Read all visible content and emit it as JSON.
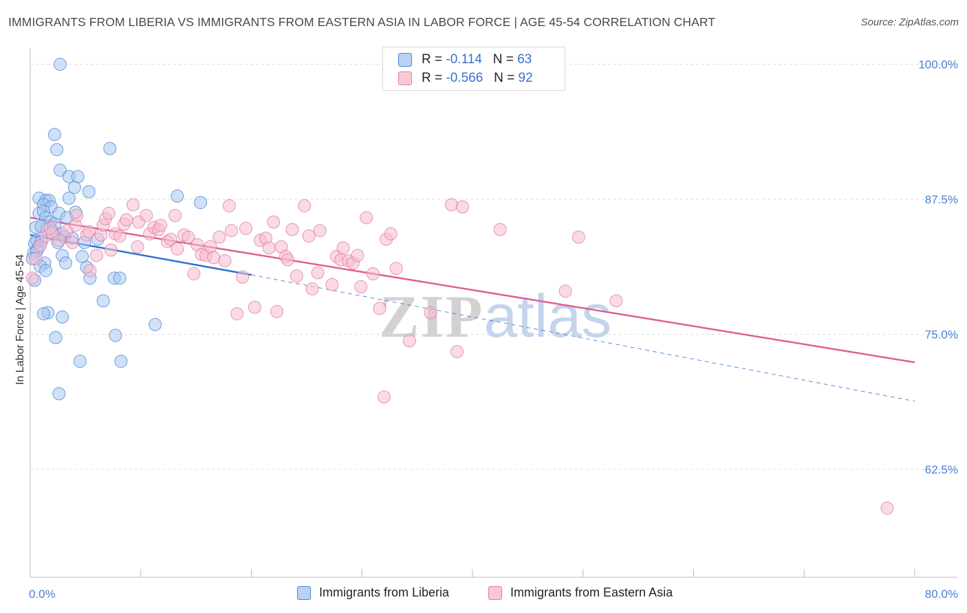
{
  "title": "IMMIGRANTS FROM LIBERIA VS IMMIGRANTS FROM EASTERN ASIA IN LABOR FORCE | AGE 45-54 CORRELATION CHART",
  "source": "Source: ZipAtlas.com",
  "watermark": "ZIPatlas",
  "colors": {
    "liberia_fill": "#a9c8f0",
    "liberia_stroke": "#4a86d8",
    "liberia_line": "#2f6fd0",
    "asia_fill": "#f6bcd0",
    "asia_stroke": "#e07da0",
    "asia_line": "#e0608f",
    "tick_label": "#4a7fd4",
    "grid": "#dddddd"
  },
  "legend": {
    "rows": [
      {
        "r_label": "R =",
        "r_value": "-0.114",
        "n_label": "N =",
        "n_value": "63"
      },
      {
        "r_label": "R =",
        "r_value": "-0.566",
        "n_label": "N =",
        "n_value": "92"
      }
    ]
  },
  "bottom_legend": [
    "Immigrants from Liberia",
    "Immigrants from Eastern Asia"
  ],
  "chart_data": {
    "type": "scatter",
    "title": "IMMIGRANTS FROM LIBERIA VS IMMIGRANTS FROM EASTERN ASIA IN LABOR FORCE | AGE 45-54 CORRELATION CHART",
    "xlabel": "",
    "ylabel": "In Labor Force | Age 45-54",
    "xlim": [
      0,
      80
    ],
    "ylim": [
      52.5,
      101.5
    ],
    "x_tick_labels": [
      "0.0%",
      "80.0%"
    ],
    "y_ticks": [
      62.5,
      75.0,
      87.5,
      100.0
    ],
    "y_tick_labels": [
      "62.5%",
      "75.0%",
      "87.5%",
      "100.0%"
    ],
    "grid": true,
    "series": [
      {
        "name": "Immigrants from Liberia",
        "r": -0.114,
        "n": 63,
        "trend": {
          "x0": 0.0,
          "y0": 84.2,
          "x1": 20.0,
          "y1": 80.5,
          "dashed_x1": 80.0,
          "dashed_y1": 68.8
        },
        "points": [
          [
            2.7,
            100.0
          ],
          [
            2.2,
            93.5
          ],
          [
            2.4,
            92.1
          ],
          [
            7.2,
            92.2
          ],
          [
            2.7,
            90.2
          ],
          [
            3.5,
            89.6
          ],
          [
            4.3,
            89.6
          ],
          [
            5.3,
            88.2
          ],
          [
            4.0,
            88.6
          ],
          [
            13.3,
            87.8
          ],
          [
            15.4,
            87.2
          ],
          [
            0.8,
            87.6
          ],
          [
            1.4,
            87.4
          ],
          [
            1.7,
            87.4
          ],
          [
            1.2,
            87.0
          ],
          [
            3.5,
            87.6
          ],
          [
            1.9,
            86.8
          ],
          [
            0.8,
            86.2
          ],
          [
            1.2,
            86.4
          ],
          [
            2.6,
            86.2
          ],
          [
            4.1,
            86.3
          ],
          [
            1.4,
            85.8
          ],
          [
            3.3,
            85.8
          ],
          [
            1.8,
            85.4
          ],
          [
            2.2,
            85.2
          ],
          [
            0.5,
            84.9
          ],
          [
            1.5,
            84.7
          ],
          [
            2.9,
            84.3
          ],
          [
            0.6,
            83.7
          ],
          [
            0.4,
            83.4
          ],
          [
            1.0,
            83.6
          ],
          [
            2.5,
            83.5
          ],
          [
            3.1,
            84.0
          ],
          [
            6.1,
            83.8
          ],
          [
            4.9,
            83.5
          ],
          [
            0.7,
            83.0
          ],
          [
            0.3,
            82.5
          ],
          [
            0.6,
            82.7
          ],
          [
            2.9,
            82.3
          ],
          [
            4.7,
            82.2
          ],
          [
            1.3,
            81.6
          ],
          [
            3.2,
            81.6
          ],
          [
            0.9,
            81.3
          ],
          [
            1.4,
            80.9
          ],
          [
            5.1,
            81.2
          ],
          [
            5.4,
            80.2
          ],
          [
            7.6,
            80.2
          ],
          [
            8.1,
            80.2
          ],
          [
            0.4,
            80.0
          ],
          [
            6.6,
            78.1
          ],
          [
            1.6,
            77.0
          ],
          [
            1.2,
            76.9
          ],
          [
            2.9,
            76.6
          ],
          [
            11.3,
            75.9
          ],
          [
            7.7,
            74.9
          ],
          [
            2.3,
            74.7
          ],
          [
            4.5,
            72.5
          ],
          [
            8.2,
            72.5
          ],
          [
            2.6,
            69.5
          ],
          [
            0.2,
            82.0
          ],
          [
            3.8,
            83.9
          ],
          [
            1.0,
            85.0
          ],
          [
            2.0,
            84.5
          ]
        ]
      },
      {
        "name": "Immigrants from Eastern Asia",
        "r": -0.566,
        "n": 92,
        "trend": {
          "x0": 0.0,
          "y0": 85.8,
          "x1": 80.0,
          "y1": 72.4
        },
        "points": [
          [
            0.2,
            80.2
          ],
          [
            0.5,
            82.0
          ],
          [
            0.9,
            83.2
          ],
          [
            1.4,
            84.1
          ],
          [
            2.0,
            84.3
          ],
          [
            2.6,
            83.7
          ],
          [
            3.3,
            84.6
          ],
          [
            3.8,
            83.5
          ],
          [
            4.1,
            85.1
          ],
          [
            4.2,
            86.0
          ],
          [
            5.1,
            84.2
          ],
          [
            5.3,
            84.5
          ],
          [
            5.4,
            80.9
          ],
          [
            6.0,
            82.3
          ],
          [
            6.4,
            84.2
          ],
          [
            6.6,
            85.1
          ],
          [
            6.8,
            85.7
          ],
          [
            7.1,
            86.2
          ],
          [
            7.3,
            82.8
          ],
          [
            7.7,
            84.3
          ],
          [
            8.1,
            84.1
          ],
          [
            8.5,
            85.2
          ],
          [
            8.7,
            85.6
          ],
          [
            9.3,
            87.0
          ],
          [
            9.7,
            83.1
          ],
          [
            9.8,
            85.4
          ],
          [
            10.5,
            86.0
          ],
          [
            10.8,
            84.3
          ],
          [
            11.2,
            84.9
          ],
          [
            11.6,
            84.7
          ],
          [
            11.8,
            85.1
          ],
          [
            12.4,
            83.6
          ],
          [
            12.7,
            83.8
          ],
          [
            13.1,
            86.0
          ],
          [
            13.3,
            82.9
          ],
          [
            13.9,
            84.2
          ],
          [
            14.3,
            84.0
          ],
          [
            14.8,
            80.6
          ],
          [
            15.1,
            83.3
          ],
          [
            15.5,
            82.4
          ],
          [
            15.9,
            82.3
          ],
          [
            16.3,
            83.1
          ],
          [
            16.6,
            82.1
          ],
          [
            17.1,
            84.0
          ],
          [
            17.6,
            81.8
          ],
          [
            18.0,
            86.9
          ],
          [
            18.2,
            84.6
          ],
          [
            18.7,
            76.9
          ],
          [
            19.2,
            80.3
          ],
          [
            19.5,
            84.8
          ],
          [
            20.3,
            77.5
          ],
          [
            20.8,
            83.7
          ],
          [
            21.3,
            83.9
          ],
          [
            21.6,
            83.0
          ],
          [
            22.0,
            85.4
          ],
          [
            22.3,
            77.1
          ],
          [
            22.7,
            83.1
          ],
          [
            23.1,
            82.2
          ],
          [
            23.3,
            81.9
          ],
          [
            23.7,
            84.7
          ],
          [
            24.1,
            80.4
          ],
          [
            24.8,
            86.9
          ],
          [
            25.2,
            84.1
          ],
          [
            25.5,
            79.2
          ],
          [
            26.0,
            80.7
          ],
          [
            26.2,
            84.6
          ],
          [
            27.3,
            79.6
          ],
          [
            27.7,
            82.2
          ],
          [
            28.1,
            81.9
          ],
          [
            28.3,
            83.0
          ],
          [
            28.8,
            81.8
          ],
          [
            29.2,
            81.6
          ],
          [
            29.6,
            82.3
          ],
          [
            29.9,
            79.4
          ],
          [
            30.4,
            85.8
          ],
          [
            31.0,
            80.6
          ],
          [
            31.6,
            77.4
          ],
          [
            32.0,
            69.2
          ],
          [
            32.2,
            83.8
          ],
          [
            32.6,
            84.3
          ],
          [
            33.1,
            81.1
          ],
          [
            34.3,
            74.4
          ],
          [
            36.2,
            77.0
          ],
          [
            38.1,
            87.0
          ],
          [
            38.6,
            73.4
          ],
          [
            39.1,
            86.8
          ],
          [
            42.5,
            84.7
          ],
          [
            48.4,
            79.0
          ],
          [
            49.6,
            84.0
          ],
          [
            53.0,
            78.1
          ],
          [
            77.5,
            58.9
          ],
          [
            1.8,
            84.8
          ]
        ]
      }
    ]
  }
}
